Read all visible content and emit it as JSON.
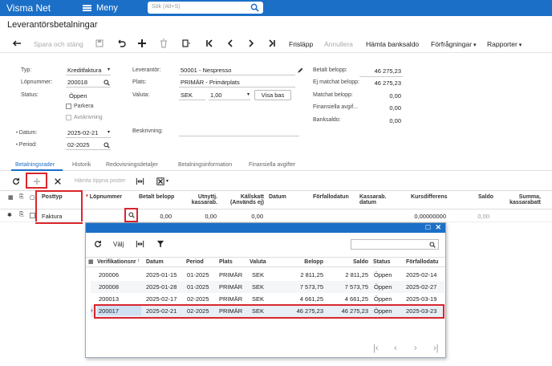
{
  "app": {
    "brand": "Visma Net",
    "menu_label": "Meny",
    "search_placeholder": "Sök (Alt+S)"
  },
  "page_title": "Leverantörsbetalningar",
  "toolbar": {
    "save_close": "Spara och stäng",
    "release": "Frisläpp",
    "cancel": "Annullera",
    "get_balance": "Hämta banksaldo",
    "inquiries": "Förfrågningar",
    "reports": "Rapporter"
  },
  "form": {
    "type_label": "Typ:",
    "type_value": "Kreditfaktura",
    "docno_label": "Löpnummer:",
    "docno_value": "200018",
    "status_label": "Status:",
    "status_value": "Öppen",
    "hold_label": "Parkera",
    "writeoff_label": "Avskrivning",
    "date_label": "Datum:",
    "date_value": "2025-02-21",
    "period_label": "Period:",
    "period_value": "02-2025",
    "supplier_label": "Leverantör:",
    "supplier_value": "50001 - Nespresso",
    "location_label": "Plats:",
    "location_value": "PRIMÄR - Primärplats",
    "currency_label": "Valuta:",
    "currency_value": "SEK",
    "rate_value": "1,00",
    "base_button": "Visa bas",
    "description_label": "Beskrivning:",
    "paid_label": "Betalt belopp:",
    "paid_value": "46 275,23",
    "unmatched_label": "Ej matchat belopp:",
    "unmatched_value": "46 275,23",
    "matched_label": "Matchat belopp:",
    "matched_value": "0,00",
    "fees_label": "Finansiella avgif...",
    "fees_value": "0,00",
    "bank_label": "Banksaldo:",
    "bank_value": "0,00"
  },
  "tabs": [
    "Betalningsrader",
    "Historik",
    "Redovisningsdetaljer",
    "Betalningsinformation",
    "Finansiella avgifter"
  ],
  "grid_toolbar": {
    "get_open": "Hämta öppna poster"
  },
  "grid": {
    "headers": [
      "Posttyp",
      "Löpnummer",
      "Betalt belopp",
      "Utnyttj. kassarab.",
      "Källskatt (Används ej)",
      "Datum",
      "Förfallodatun",
      "Kassarab. datum",
      "Kursdifferens",
      "Saldo",
      "Summa, kassarabatt"
    ],
    "row": {
      "type": "Faktura",
      "paid": "0,00",
      "disc": "0,00",
      "wht": "0,00",
      "rate_diff": "0,00000000",
      "balance": "0,00"
    }
  },
  "popup": {
    "select_label": "Välj",
    "headers": [
      "Verifikationsnr",
      "Datum",
      "Period",
      "Plats",
      "Valuta",
      "Belopp",
      "Saldo",
      "Status",
      "Förfallodatu"
    ],
    "rows": [
      [
        "200006",
        "2025-01-15",
        "01-2025",
        "PRIMÄR",
        "SEK",
        "2 811,25",
        "2 811,25",
        "Öppen",
        "2025-02-14"
      ],
      [
        "200008",
        "2025-01-28",
        "01-2025",
        "PRIMÄR",
        "SEK",
        "7 573,75",
        "7 573,75",
        "Öppen",
        "2025-02-27"
      ],
      [
        "200013",
        "2025-02-17",
        "02-2025",
        "PRIMÄR",
        "SEK",
        "4 661,25",
        "4 661,25",
        "Öppen",
        "2025-03-19"
      ],
      [
        "200017",
        "2025-02-21",
        "02-2025",
        "PRIMÄR",
        "SEK",
        "46 275,23",
        "46 275,23",
        "Öppen",
        "2025-03-23"
      ]
    ]
  }
}
